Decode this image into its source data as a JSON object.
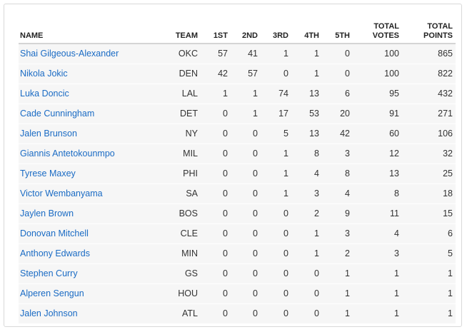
{
  "columns": {
    "name": "NAME",
    "team": "TEAM",
    "first": "1ST",
    "second": "2ND",
    "third": "3RD",
    "fourth": "4TH",
    "fifth": "5TH",
    "total_votes_1": "TOTAL",
    "total_votes_2": "VOTES",
    "total_points_1": "TOTAL",
    "total_points_2": "POINTS"
  },
  "rows": [
    {
      "name": "Shai Gilgeous-Alexander",
      "team": "OKC",
      "first": "57",
      "second": "41",
      "third": "1",
      "fourth": "1",
      "fifth": "0",
      "votes": "100",
      "points": "865"
    },
    {
      "name": "Nikola Jokic",
      "team": "DEN",
      "first": "42",
      "second": "57",
      "third": "0",
      "fourth": "1",
      "fifth": "0",
      "votes": "100",
      "points": "822"
    },
    {
      "name": "Luka Doncic",
      "team": "LAL",
      "first": "1",
      "second": "1",
      "third": "74",
      "fourth": "13",
      "fifth": "6",
      "votes": "95",
      "points": "432"
    },
    {
      "name": "Cade Cunningham",
      "team": "DET",
      "first": "0",
      "second": "1",
      "third": "17",
      "fourth": "53",
      "fifth": "20",
      "votes": "91",
      "points": "271"
    },
    {
      "name": "Jalen Brunson",
      "team": "NY",
      "first": "0",
      "second": "0",
      "third": "5",
      "fourth": "13",
      "fifth": "42",
      "votes": "60",
      "points": "106"
    },
    {
      "name": "Giannis Antetokounmpo",
      "team": "MIL",
      "first": "0",
      "second": "0",
      "third": "1",
      "fourth": "8",
      "fifth": "3",
      "votes": "12",
      "points": "32"
    },
    {
      "name": "Tyrese Maxey",
      "team": "PHI",
      "first": "0",
      "second": "0",
      "third": "1",
      "fourth": "4",
      "fifth": "8",
      "votes": "13",
      "points": "25"
    },
    {
      "name": "Victor Wembanyama",
      "team": "SA",
      "first": "0",
      "second": "0",
      "third": "1",
      "fourth": "3",
      "fifth": "4",
      "votes": "8",
      "points": "18"
    },
    {
      "name": "Jaylen Brown",
      "team": "BOS",
      "first": "0",
      "second": "0",
      "third": "0",
      "fourth": "2",
      "fifth": "9",
      "votes": "11",
      "points": "15"
    },
    {
      "name": "Donovan Mitchell",
      "team": "CLE",
      "first": "0",
      "second": "0",
      "third": "0",
      "fourth": "1",
      "fifth": "3",
      "votes": "4",
      "points": "6"
    },
    {
      "name": "Anthony Edwards",
      "team": "MIN",
      "first": "0",
      "second": "0",
      "third": "0",
      "fourth": "1",
      "fifth": "2",
      "votes": "3",
      "points": "5"
    },
    {
      "name": "Stephen Curry",
      "team": "GS",
      "first": "0",
      "second": "0",
      "third": "0",
      "fourth": "0",
      "fifth": "1",
      "votes": "1",
      "points": "1"
    },
    {
      "name": "Alperen Sengun",
      "team": "HOU",
      "first": "0",
      "second": "0",
      "third": "0",
      "fourth": "0",
      "fifth": "1",
      "votes": "1",
      "points": "1"
    },
    {
      "name": "Jalen Johnson",
      "team": "ATL",
      "first": "0",
      "second": "0",
      "third": "0",
      "fourth": "0",
      "fifth": "1",
      "votes": "1",
      "points": "1"
    }
  ]
}
